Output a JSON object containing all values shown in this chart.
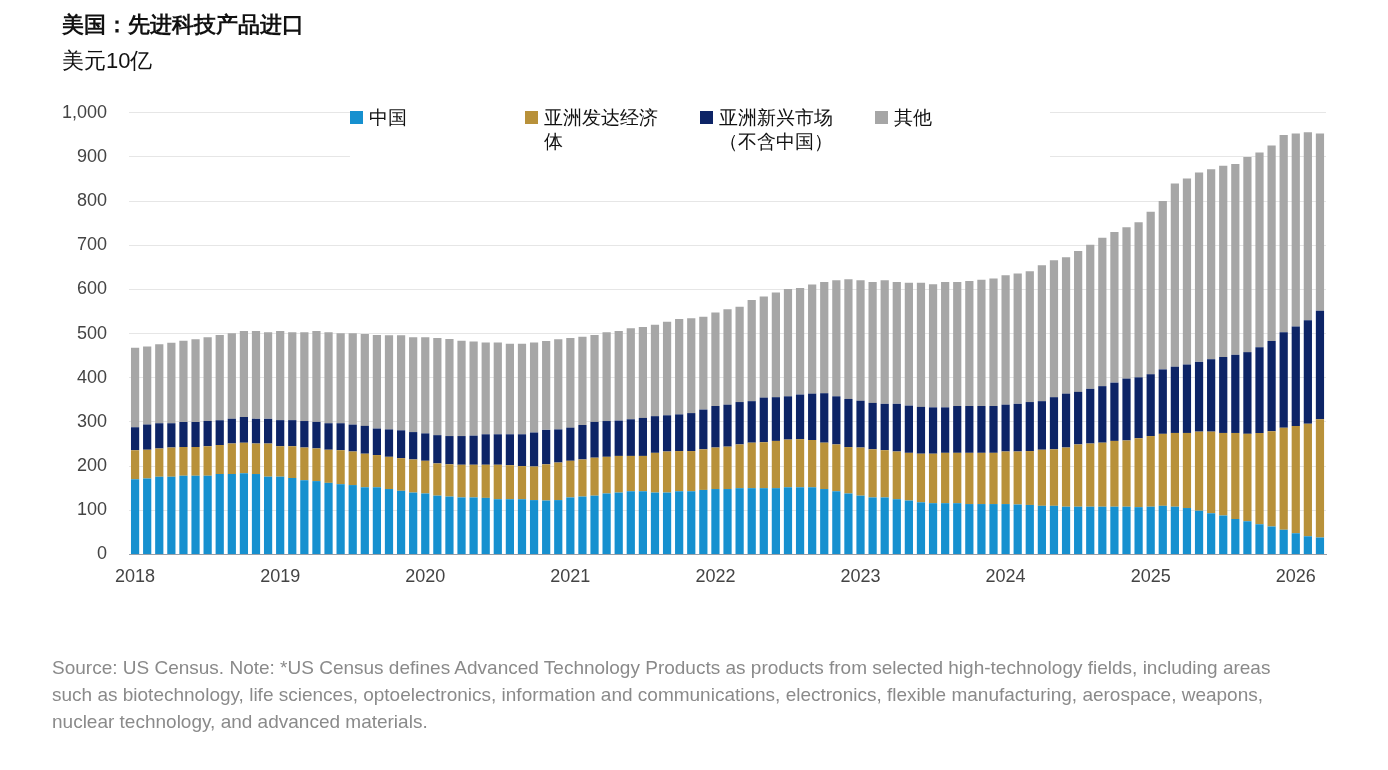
{
  "chart_data": {
    "type": "bar",
    "title": "美国：先进科技产品进口",
    "subtitle": "美元10亿",
    "categories": [
      "2018",
      null,
      null,
      null,
      null,
      null,
      null,
      null,
      null,
      null,
      null,
      null,
      "2019",
      null,
      null,
      null,
      null,
      null,
      null,
      null,
      null,
      null,
      null,
      null,
      "2020",
      null,
      null,
      null,
      null,
      null,
      null,
      null,
      null,
      null,
      null,
      null,
      "2021",
      null,
      null,
      null,
      null,
      null,
      null,
      null,
      null,
      null,
      null,
      null,
      "2022",
      null,
      null,
      null,
      null,
      null,
      null,
      null,
      null,
      null,
      null,
      null,
      "2023",
      null,
      null,
      null,
      null,
      null,
      null,
      null,
      null,
      null,
      null,
      null,
      "2024",
      null,
      null,
      null,
      null,
      null,
      null,
      null,
      null,
      null,
      null,
      null,
      "2025",
      null,
      null,
      null,
      null,
      null,
      null,
      null,
      null,
      null,
      null,
      null,
      "2026",
      null,
      null
    ],
    "stacked": true,
    "series": [
      {
        "name": "中国",
        "color": "#1690cf",
        "values": [
          170,
          172,
          176,
          176,
          178,
          178,
          178,
          182,
          182,
          184,
          182,
          176,
          176,
          173,
          168,
          166,
          162,
          159,
          157,
          152,
          152,
          148,
          144,
          140,
          138,
          133,
          131,
          129,
          129,
          128,
          125,
          125,
          125,
          123,
          122,
          123,
          129,
          131,
          133,
          138,
          140,
          143,
          143,
          140,
          140,
          143,
          143,
          146,
          148,
          148,
          150,
          150,
          150,
          150,
          152,
          152,
          152,
          148,
          143,
          138,
          133,
          129,
          129,
          125,
          122,
          118,
          116,
          116,
          116,
          114,
          114,
          114,
          114,
          113,
          112,
          110,
          110,
          108,
          108,
          108,
          108,
          108,
          108,
          107,
          108,
          110,
          108,
          105,
          99,
          93,
          88,
          80,
          75,
          68,
          63,
          56,
          48,
          41,
          38
        ]
      },
      {
        "name": "亚洲发达经济体",
        "color": "#b8913a",
        "values": [
          66,
          65,
          64,
          66,
          65,
          65,
          67,
          66,
          69,
          69,
          69,
          75,
          69,
          72,
          74,
          74,
          75,
          77,
          76,
          76,
          73,
          73,
          74,
          75,
          74,
          73,
          73,
          74,
          74,
          75,
          78,
          77,
          75,
          76,
          82,
          85,
          83,
          84,
          86,
          83,
          83,
          80,
          80,
          90,
          93,
          91,
          91,
          92,
          94,
          96,
          99,
          103,
          104,
          107,
          108,
          109,
          107,
          105,
          106,
          105,
          109,
          109,
          107,
          108,
          108,
          110,
          112,
          114,
          114,
          116,
          116,
          116,
          119,
          120,
          122,
          127,
          128,
          134,
          141,
          143,
          145,
          149,
          150,
          156,
          160,
          163,
          167,
          170,
          179,
          185,
          187,
          195,
          198,
          207,
          216,
          231,
          243,
          255,
          268
        ]
      },
      {
        "name": "亚洲新兴市场（不含中国）",
        "color": "#0d2466",
        "values": [
          52,
          57,
          57,
          55,
          57,
          57,
          57,
          56,
          56,
          58,
          56,
          56,
          59,
          59,
          60,
          60,
          60,
          61,
          61,
          63,
          60,
          62,
          63,
          62,
          62,
          64,
          64,
          65,
          66,
          69,
          69,
          70,
          72,
          77,
          78,
          75,
          75,
          78,
          81,
          81,
          80,
          83,
          86,
          83,
          82,
          83,
          86,
          90,
          94,
          95,
          96,
          94,
          101,
          99,
          98,
          101,
          105,
          112,
          109,
          109,
          106,
          105,
          105,
          108,
          107,
          106,
          105,
          103,
          106,
          106,
          106,
          106,
          106,
          108,
          111,
          110,
          118,
          122,
          119,
          124,
          128,
          132,
          140,
          138,
          140,
          146,
          150,
          155,
          158,
          164,
          172,
          177,
          185,
          194,
          204,
          216,
          225,
          234,
          246
        ]
      },
      {
        "name": "其他",
        "color": "#a6a6a6",
        "values": [
          180,
          177,
          179,
          182,
          184,
          187,
          190,
          193,
          194,
          195,
          199,
          196,
          202,
          199,
          201,
          206,
          206,
          204,
          207,
          208,
          212,
          213,
          215,
          215,
          218,
          220,
          220,
          216,
          213,
          208,
          208,
          205,
          205,
          204,
          201,
          204,
          203,
          200,
          197,
          201,
          203,
          206,
          206,
          207,
          212,
          216,
          215,
          210,
          212,
          216,
          216,
          229,
          229,
          237,
          243,
          241,
          247,
          252,
          263,
          271,
          273,
          274,
          280,
          276,
          278,
          281,
          279,
          284,
          281,
          283,
          286,
          289,
          293,
          295,
          296,
          308,
          310,
          309,
          319,
          326,
          336,
          341,
          343,
          351,
          368,
          381,
          415,
          421,
          429,
          430,
          433,
          432,
          442,
          441,
          443,
          447,
          437,
          426,
          401
        ]
      }
    ],
    "ylim": [
      0,
      1000
    ],
    "yticks": [
      0,
      100,
      200,
      300,
      400,
      500,
      600,
      700,
      800,
      900,
      {
        "value": 1000,
        "label": "1,000"
      }
    ],
    "grid": "y",
    "legend": "top",
    "annotations": [
      "Source: US Census. Note: *US Census defines Advanced Technology Products as products from selected high-technology fields, including areas such as biotechnology, life sciences, optoelectronics, information and communications, electronics, flexible manufacturing, aerospace, weapons, nuclear technology, and advanced materials."
    ]
  }
}
